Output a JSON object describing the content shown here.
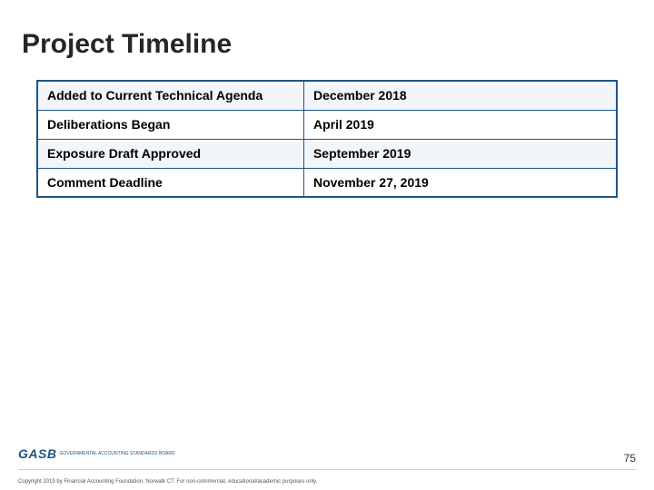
{
  "title": "Project Timeline",
  "table": {
    "border_color": "#1f5582",
    "odd_row_bg": "#f2f5fa",
    "even_row_bg": "#ffffff",
    "font_size": 14,
    "font_weight": "bold",
    "text_color": "#000000",
    "rows": [
      {
        "label": "Added to Current Technical Agenda",
        "date": "December 2018"
      },
      {
        "label": "Deliberations Began",
        "date": "April 2019"
      },
      {
        "label": "Exposure Draft Approved",
        "date": "September 2019"
      },
      {
        "label": "Comment Deadline",
        "date": "November 27, 2019"
      }
    ]
  },
  "footer": {
    "page_number": "75",
    "logo_text": "GASB",
    "logo_tag": "GOVERNMENTAL ACCOUNTING STANDARDS BOARD",
    "copyright": "Copyright 2019 by Financial Accounting Foundation, Norwalk CT.  For non-commercial, educational/academic purposes only."
  },
  "colors": {
    "title_color": "#262626",
    "brand_blue": "#1f5582",
    "background": "#ffffff",
    "divider": "#d0d0d0"
  }
}
